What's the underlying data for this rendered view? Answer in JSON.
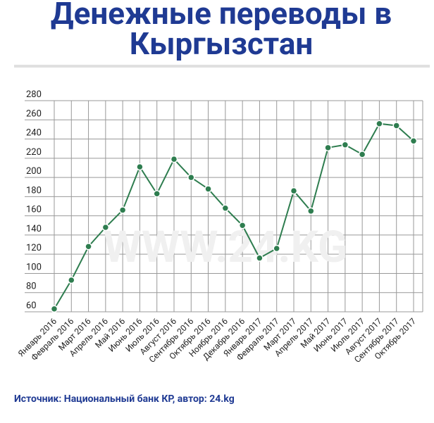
{
  "chart_data": {
    "type": "line",
    "title": [
      "Денежные переводы в",
      "Кыргызстан"
    ],
    "watermark": "WWW.24.KG",
    "source": "Источник: Национальный банк КР, автор: 24.kg",
    "categories": [
      "Январь 2016",
      "Февраль 2016",
      "Март 2016",
      "Апрель 2016",
      "Май 2016",
      "Июнь 2016",
      "Июль 2016",
      "Август 2016",
      "Сентябрь 2016",
      "Октябрь 2016",
      "Ноябрь 2016",
      "Декабрь 2016",
      "Январь 2017",
      "Февраль 2017",
      "Март 2017",
      "Апрель 2017",
      "Май 2017",
      "Июнь 2017",
      "Июль 2017",
      "Август 2017",
      "Сентябрь 2017",
      "Октябрь 2017"
    ],
    "series": [
      {
        "color": "#2e7d4f",
        "values": [
          63,
          93,
          128,
          148,
          166,
          211,
          183,
          219,
          200,
          188,
          168,
          150,
          116,
          126,
          186,
          165,
          231,
          234,
          224,
          256,
          254,
          238
        ]
      }
    ],
    "ylim": [
      60,
      280
    ],
    "yticks": [
      60,
      80,
      100,
      120,
      140,
      160,
      180,
      200,
      220,
      240,
      260,
      280
    ],
    "grid": true
  }
}
